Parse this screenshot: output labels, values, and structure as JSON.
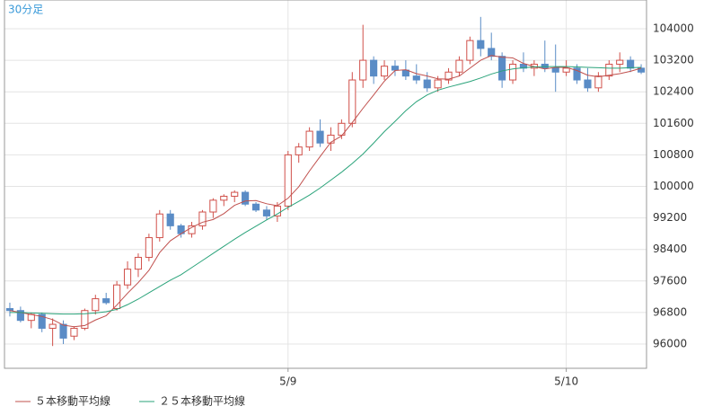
{
  "chart_data": {
    "type": "candlestick",
    "label": "30分足",
    "categories": [
      null,
      null,
      null,
      null,
      null,
      null,
      null,
      null,
      null,
      null,
      null,
      null,
      null,
      null,
      null,
      null,
      null,
      null,
      null,
      null,
      null,
      null,
      null,
      null,
      null,
      null,
      "5/9",
      null,
      null,
      null,
      null,
      null,
      null,
      null,
      null,
      null,
      null,
      null,
      null,
      null,
      null,
      null,
      null,
      null,
      null,
      null,
      null,
      null,
      null,
      null,
      null,
      null,
      "5/10",
      null,
      null,
      null,
      null,
      null,
      null,
      null
    ],
    "open": [
      96900,
      96850,
      96600,
      96750,
      96400,
      96500,
      96200,
      96400,
      96850,
      97150,
      96900,
      97500,
      97900,
      98200,
      98700,
      99300,
      99000,
      98800,
      99000,
      99350,
      99650,
      99750,
      99850,
      99550,
      99400,
      99250,
      99500,
      100800,
      101000,
      101400,
      101100,
      101300,
      101600,
      102700,
      103200,
      102800,
      103050,
      102950,
      102800,
      102700,
      102500,
      102700,
      102900,
      103200,
      103700,
      103500,
      103300,
      102700,
      103100,
      103000,
      103100,
      103000,
      102900,
      103000,
      102700,
      102500,
      102800,
      103100,
      103200,
      103000
    ],
    "high": [
      97050,
      96950,
      96800,
      96800,
      96650,
      96600,
      96450,
      96900,
      97250,
      97300,
      97600,
      98100,
      98300,
      98800,
      99400,
      99400,
      99050,
      99100,
      99400,
      99700,
      99800,
      99900,
      99900,
      99600,
      99500,
      99600,
      100900,
      101100,
      101500,
      101700,
      101500,
      101700,
      102900,
      104100,
      103300,
      103200,
      103200,
      103200,
      103100,
      102900,
      102800,
      103000,
      103300,
      103800,
      104300,
      103900,
      103400,
      103200,
      103400,
      103200,
      103700,
      103600,
      103200,
      103100,
      103000,
      102900,
      103200,
      103400,
      103300,
      103100
    ],
    "low": [
      96700,
      96550,
      96400,
      96300,
      95950,
      96000,
      96100,
      96350,
      96750,
      97000,
      96850,
      97400,
      97700,
      98100,
      98600,
      98900,
      98700,
      98700,
      98900,
      99200,
      99500,
      99600,
      99500,
      99350,
      99150,
      99100,
      99400,
      100600,
      100900,
      101000,
      100900,
      101200,
      101500,
      102500,
      102600,
      102700,
      102800,
      102700,
      102600,
      102400,
      102400,
      102600,
      102800,
      103100,
      103300,
      103200,
      102500,
      102600,
      102900,
      102800,
      102900,
      102400,
      102800,
      102600,
      102400,
      102400,
      102700,
      102900,
      102900,
      102850
    ],
    "close": [
      96850,
      96600,
      96750,
      96400,
      96500,
      96150,
      96400,
      96850,
      97150,
      97050,
      97500,
      97900,
      98200,
      98700,
      99300,
      99000,
      98800,
      99000,
      99350,
      99650,
      99750,
      99850,
      99550,
      99400,
      99250,
      99500,
      100800,
      101000,
      101400,
      101100,
      101300,
      101600,
      102700,
      103200,
      102800,
      103050,
      102950,
      102800,
      102700,
      102500,
      102700,
      102900,
      103200,
      103700,
      103500,
      103300,
      102700,
      103100,
      103000,
      103100,
      103000,
      102900,
      103000,
      102700,
      102500,
      102800,
      103100,
      103200,
      103000,
      102900
    ],
    "up_color": "#d0504a",
    "down_color": "#5a8cc6",
    "series": [
      {
        "name": "５本移動平均線",
        "color": "#c0504d",
        "values": [
          96850,
          96800,
          96750,
          96700,
          96620,
          96480,
          96440,
          96470,
          96610,
          96720,
          96990,
          97290,
          97560,
          97870,
          98320,
          98620,
          98800,
          98960,
          99090,
          99160,
          99310,
          99520,
          99630,
          99640,
          99560,
          99510,
          99700,
          99990,
          100390,
          100760,
          101120,
          101280,
          101620,
          101980,
          102320,
          102670,
          102940,
          102960,
          102860,
          102800,
          102730,
          102720,
          102800,
          103000,
          103200,
          103320,
          103280,
          103260,
          103120,
          103040,
          102980,
          103020,
          103020,
          102940,
          102820,
          102780,
          102820,
          102860,
          102920,
          103000
        ]
      },
      {
        "name": "２５本移動平均線",
        "color": "#2aa37a",
        "values": [
          96800,
          96800,
          96790,
          96780,
          96770,
          96760,
          96760,
          96770,
          96790,
          96820,
          96880,
          97000,
          97140,
          97300,
          97460,
          97620,
          97760,
          97940,
          98120,
          98300,
          98480,
          98660,
          98830,
          98990,
          99150,
          99300,
          99470,
          99620,
          99780,
          99960,
          100160,
          100360,
          100580,
          100820,
          101100,
          101390,
          101650,
          101920,
          102150,
          102320,
          102440,
          102520,
          102590,
          102660,
          102750,
          102850,
          102930,
          102980,
          103010,
          103030,
          103040,
          103040,
          103040,
          103030,
          103020,
          103010,
          103000,
          103000,
          103010,
          103020
        ]
      }
    ],
    "ylim": [
      95385,
      104729
    ],
    "yticks": [
      96000,
      96800,
      97600,
      98400,
      99200,
      100000,
      100800,
      101600,
      102400,
      103200,
      104000
    ],
    "grid": true
  }
}
